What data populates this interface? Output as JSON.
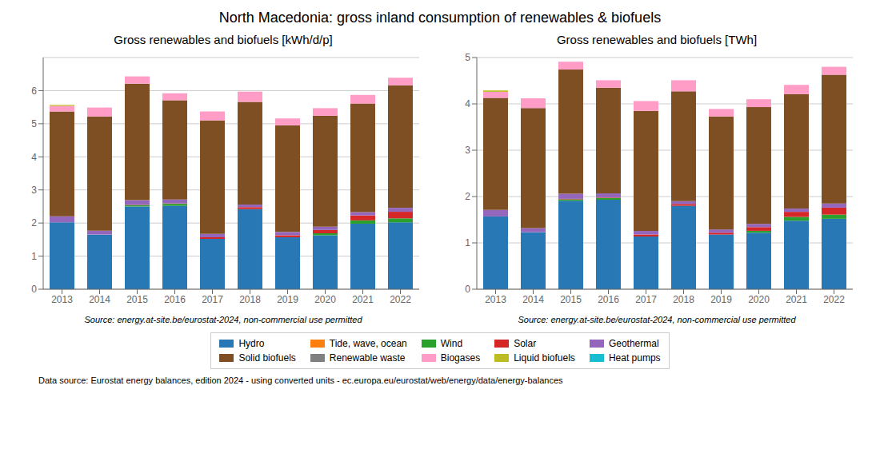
{
  "title": "North Macedonia: gross inland consumption of renewables & biofuels",
  "legend": "bottom",
  "annotations": [
    "Data source: Eurostat energy balances, edition 2024 - using converted units - ec.europa.eu/eurostat/web/energy/data/energy-balances"
  ],
  "chart_data": [
    {
      "type": "bar",
      "stacked": true,
      "grid": true,
      "title": "Gross renewables and biofuels [kWh/d/p]",
      "annotations": [
        "Source: energy.at-site.be/eurostat-2024, non-commercial use permitted"
      ],
      "categories": [
        "2013",
        "2014",
        "2015",
        "2016",
        "2017",
        "2018",
        "2019",
        "2020",
        "2021",
        "2022"
      ],
      "series": [
        {
          "name": "Hydro",
          "color": "#2878b5",
          "values": [
            2.02,
            1.65,
            2.5,
            2.52,
            1.52,
            2.42,
            1.57,
            1.63,
            1.98,
            2.02
          ]
        },
        {
          "name": "Tide, wave, ocean",
          "color": "#ff7f0e",
          "values": [
            0.0,
            0.0,
            0.0,
            0.0,
            0.0,
            0.0,
            0.0,
            0.0,
            0.0,
            0.0
          ]
        },
        {
          "name": "Wind",
          "color": "#2ca02c",
          "values": [
            0.0,
            0.0,
            0.04,
            0.06,
            0.0,
            0.0,
            0.0,
            0.06,
            0.1,
            0.12
          ]
        },
        {
          "name": "Solar",
          "color": "#d62728",
          "values": [
            0.0,
            0.0,
            0.01,
            0.01,
            0.05,
            0.06,
            0.06,
            0.1,
            0.15,
            0.2
          ]
        },
        {
          "name": "Geothermal",
          "color": "#9467bd",
          "values": [
            0.18,
            0.12,
            0.14,
            0.12,
            0.1,
            0.08,
            0.1,
            0.1,
            0.1,
            0.12
          ]
        },
        {
          "name": "Solid biofuels",
          "color": "#7f4f24",
          "values": [
            3.17,
            3.45,
            3.52,
            3.0,
            3.43,
            3.1,
            3.22,
            3.35,
            3.28,
            3.7
          ]
        },
        {
          "name": "Renewable waste",
          "color": "#808080",
          "values": [
            0.0,
            0.0,
            0.0,
            0.0,
            0.0,
            0.0,
            0.0,
            0.0,
            0.0,
            0.0
          ]
        },
        {
          "name": "Biogases",
          "color": "#ff9dc6",
          "values": [
            0.17,
            0.27,
            0.22,
            0.21,
            0.27,
            0.31,
            0.21,
            0.23,
            0.26,
            0.23
          ]
        },
        {
          "name": "Liquid biofuels",
          "color": "#bcbd22",
          "values": [
            0.03,
            0.0,
            0.0,
            0.0,
            0.0,
            0.0,
            0.0,
            0.0,
            0.0,
            0.0
          ]
        },
        {
          "name": "Heat pumps",
          "color": "#17becf",
          "values": [
            0.0,
            0.0,
            0.0,
            0.0,
            0.0,
            0.0,
            0.0,
            0.0,
            0.0,
            0.0
          ]
        }
      ],
      "ylim": [
        0,
        7
      ],
      "yticks": [
        0,
        1,
        2,
        3,
        4,
        5,
        6
      ]
    },
    {
      "type": "bar",
      "stacked": true,
      "grid": true,
      "title": "Gross renewables and biofuels [TWh]",
      "annotations": [
        "Source: energy.at-site.be/eurostat-2024, non-commercial use permitted"
      ],
      "categories": [
        "2013",
        "2014",
        "2015",
        "2016",
        "2017",
        "2018",
        "2019",
        "2020",
        "2021",
        "2022"
      ],
      "series": [
        {
          "name": "Hydro",
          "color": "#2878b5",
          "values": [
            1.57,
            1.23,
            1.91,
            1.93,
            1.14,
            1.8,
            1.18,
            1.22,
            1.48,
            1.52
          ]
        },
        {
          "name": "Tide, wave, ocean",
          "color": "#ff7f0e",
          "values": [
            0.0,
            0.0,
            0.0,
            0.0,
            0.0,
            0.0,
            0.0,
            0.0,
            0.0,
            0.0
          ]
        },
        {
          "name": "Wind",
          "color": "#2ca02c",
          "values": [
            0.0,
            0.0,
            0.03,
            0.04,
            0.0,
            0.0,
            0.0,
            0.04,
            0.08,
            0.09
          ]
        },
        {
          "name": "Solar",
          "color": "#d62728",
          "values": [
            0.0,
            0.0,
            0.01,
            0.01,
            0.04,
            0.04,
            0.04,
            0.08,
            0.11,
            0.15
          ]
        },
        {
          "name": "Geothermal",
          "color": "#9467bd",
          "values": [
            0.14,
            0.09,
            0.11,
            0.09,
            0.08,
            0.06,
            0.07,
            0.07,
            0.07,
            0.09
          ]
        },
        {
          "name": "Solid biofuels",
          "color": "#7f4f24",
          "values": [
            2.42,
            2.59,
            2.68,
            2.28,
            2.59,
            2.37,
            2.44,
            2.52,
            2.47,
            2.78
          ]
        },
        {
          "name": "Renewable waste",
          "color": "#808080",
          "values": [
            0.0,
            0.0,
            0.0,
            0.0,
            0.0,
            0.0,
            0.0,
            0.0,
            0.0,
            0.0
          ]
        },
        {
          "name": "Biogases",
          "color": "#ff9dc6",
          "values": [
            0.13,
            0.21,
            0.17,
            0.16,
            0.21,
            0.24,
            0.16,
            0.17,
            0.2,
            0.17
          ]
        },
        {
          "name": "Liquid biofuels",
          "color": "#bcbd22",
          "values": [
            0.03,
            0.0,
            0.0,
            0.0,
            0.0,
            0.0,
            0.0,
            0.0,
            0.0,
            0.0
          ]
        },
        {
          "name": "Heat pumps",
          "color": "#17becf",
          "values": [
            0.0,
            0.0,
            0.0,
            0.0,
            0.0,
            0.0,
            0.0,
            0.0,
            0.0,
            0.0
          ]
        }
      ],
      "ylim": [
        0,
        5
      ],
      "yticks": [
        0,
        1,
        2,
        3,
        4,
        5
      ]
    }
  ]
}
